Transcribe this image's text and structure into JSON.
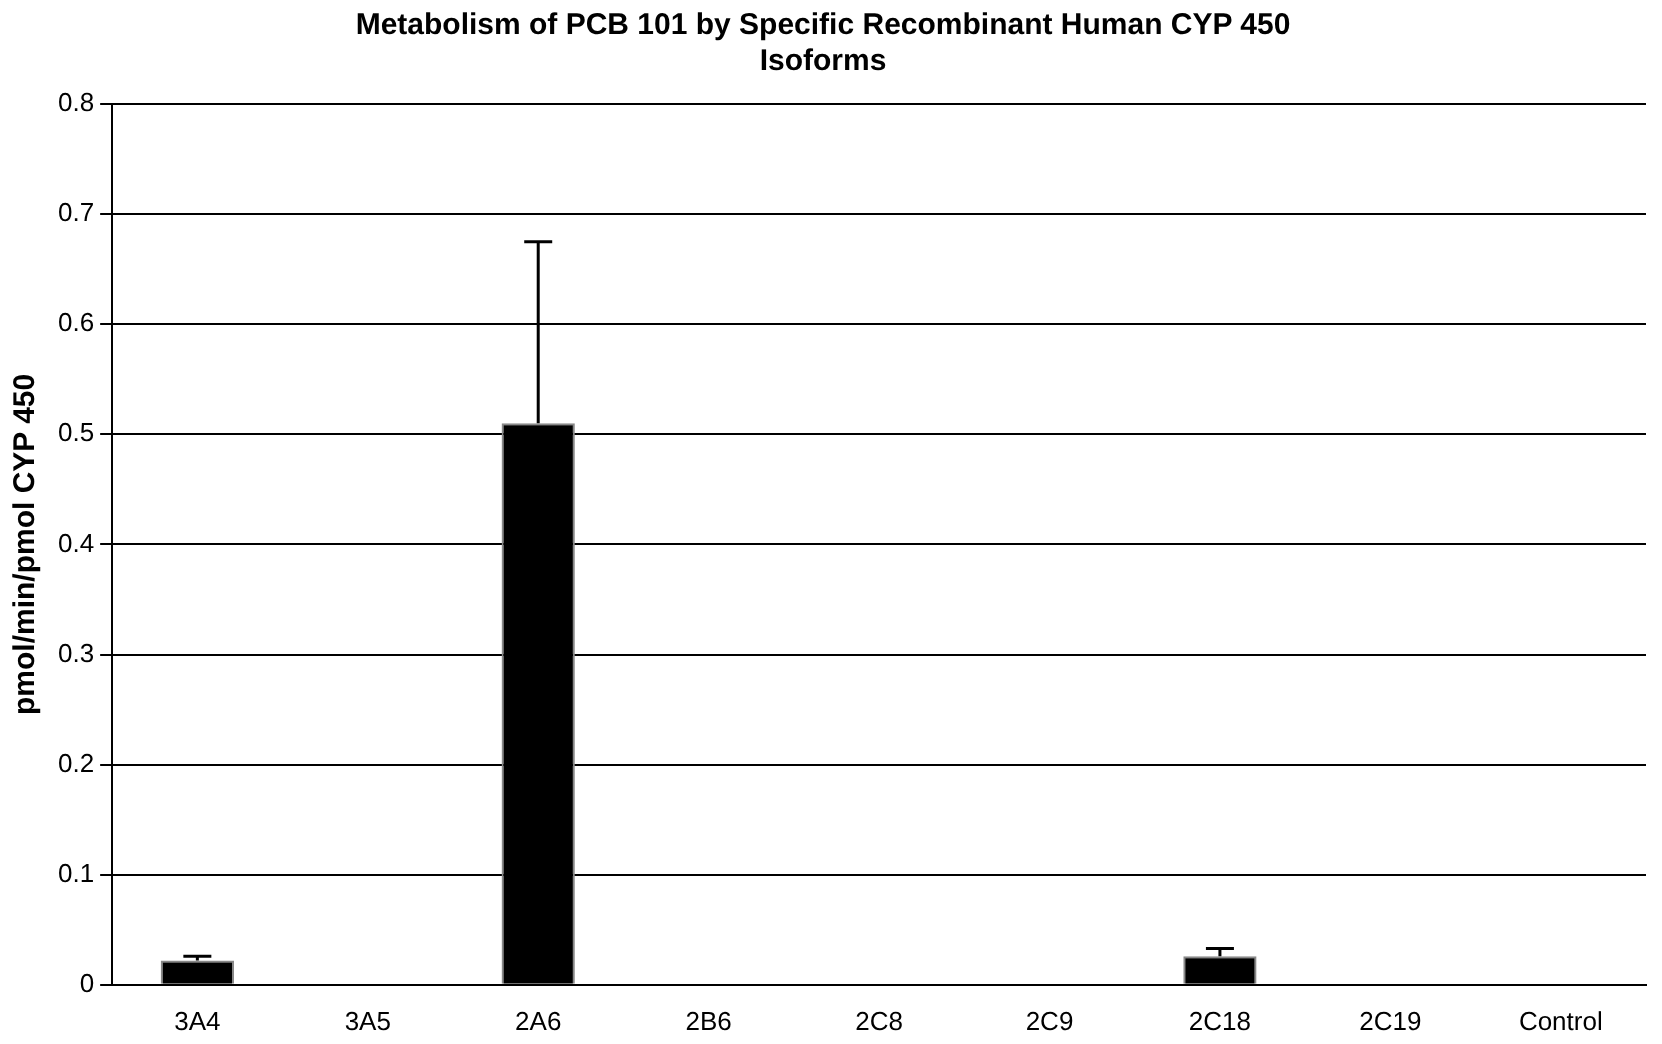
{
  "chart_data": {
    "type": "bar",
    "title": "Metabolism of PCB 101 by Specific Recombinant Human CYP 450 Isoforms",
    "ylabel": "pmol/min/pmol CYP 450",
    "categories": [
      "3A4",
      "3A5",
      "2A6",
      "2B6",
      "2C8",
      "2C9",
      "2C18",
      "2C19",
      "Control"
    ],
    "values": [
      0.022,
      0.001,
      0.51,
      0.001,
      0.001,
      0.001,
      0.026,
      0.001,
      0.001
    ],
    "errors": [
      0.004,
      null,
      0.165,
      null,
      null,
      null,
      0.007,
      null,
      null
    ],
    "color": "#000000",
    "ylim": [
      0,
      0.8
    ],
    "yticks": [
      0,
      0.1,
      0.2,
      0.3,
      0.4,
      0.5,
      0.6,
      0.7,
      0.8
    ],
    "grid": "y",
    "legend": false
  }
}
